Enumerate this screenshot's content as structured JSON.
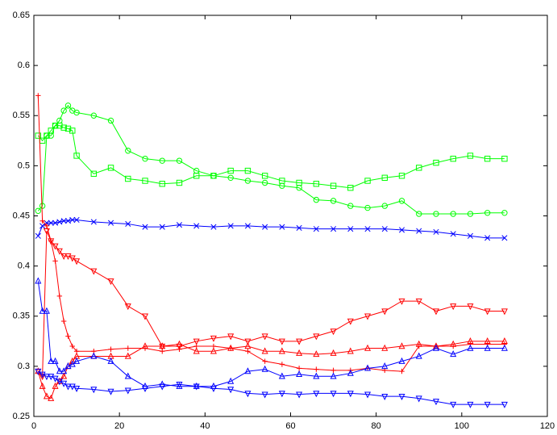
{
  "chart_data": {
    "type": "line",
    "x": [
      1,
      2,
      3,
      4,
      5,
      6,
      7,
      8,
      9,
      10,
      14,
      18,
      22,
      26,
      30,
      34,
      38,
      42,
      46,
      50,
      54,
      58,
      62,
      66,
      70,
      74,
      78,
      82,
      86,
      90,
      94,
      98,
      102,
      106,
      110
    ],
    "xlim": [
      0,
      120
    ],
    "xticks": [
      0,
      20,
      40,
      60,
      80,
      100,
      120
    ],
    "ylim": [
      0.25,
      0.65
    ],
    "yticks": [
      0.25,
      0.3,
      0.35,
      0.4,
      0.45,
      0.5,
      0.55,
      0.6,
      0.65
    ],
    "grid": false,
    "series": [
      {
        "color": "#00ff00",
        "marker": "square",
        "values": [
          0.53,
          0.525,
          0.53,
          0.535,
          0.54,
          0.54,
          0.538,
          0.537,
          0.535,
          0.51,
          0.492,
          0.498,
          0.487,
          0.485,
          0.482,
          0.483,
          0.49,
          0.49,
          0.495,
          0.495,
          0.49,
          0.485,
          0.483,
          0.482,
          0.48,
          0.478,
          0.485,
          0.488,
          0.49,
          0.498,
          0.503,
          0.507,
          0.51,
          0.507,
          0.507
        ]
      },
      {
        "color": "#00ff00",
        "marker": "circle",
        "values": [
          0.455,
          0.46,
          0.53,
          0.53,
          0.54,
          0.545,
          0.555,
          0.56,
          0.555,
          0.553,
          0.55,
          0.545,
          0.515,
          0.507,
          0.505,
          0.505,
          0.495,
          0.49,
          0.488,
          0.485,
          0.483,
          0.48,
          0.478,
          0.466,
          0.465,
          0.46,
          0.458,
          0.46,
          0.465,
          0.452,
          0.452,
          0.452,
          0.452,
          0.453,
          0.453
        ]
      },
      {
        "color": "#0000ff",
        "marker": "x",
        "values": [
          0.43,
          0.44,
          0.443,
          0.443,
          0.443,
          0.444,
          0.445,
          0.445,
          0.446,
          0.446,
          0.444,
          0.443,
          0.442,
          0.439,
          0.439,
          0.441,
          0.44,
          0.439,
          0.44,
          0.44,
          0.439,
          0.439,
          0.438,
          0.437,
          0.437,
          0.437,
          0.437,
          0.437,
          0.436,
          0.435,
          0.434,
          0.432,
          0.43,
          0.428,
          0.428
        ]
      },
      {
        "color": "#ff0000",
        "marker": "plus",
        "values": [
          0.57,
          0.445,
          0.44,
          0.425,
          0.405,
          0.37,
          0.345,
          0.33,
          0.32,
          0.315,
          0.315,
          0.317,
          0.318,
          0.318,
          0.315,
          0.317,
          0.32,
          0.32,
          0.318,
          0.315,
          0.305,
          0.302,
          0.298,
          0.297,
          0.296,
          0.296,
          0.298,
          0.296,
          0.295,
          0.32,
          0.32,
          0.32,
          0.322,
          0.322,
          0.322
        ]
      },
      {
        "color": "#ff0000",
        "marker": "triangle-down",
        "values": [
          0.295,
          0.29,
          0.435,
          0.425,
          0.42,
          0.415,
          0.41,
          0.41,
          0.408,
          0.405,
          0.395,
          0.385,
          0.36,
          0.35,
          0.32,
          0.32,
          0.325,
          0.328,
          0.33,
          0.325,
          0.33,
          0.325,
          0.325,
          0.33,
          0.335,
          0.345,
          0.35,
          0.355,
          0.365,
          0.365,
          0.355,
          0.36,
          0.36,
          0.355,
          0.355
        ]
      },
      {
        "color": "#ff0000",
        "marker": "triangle-up",
        "values": [
          0.295,
          0.28,
          0.27,
          0.268,
          0.28,
          0.285,
          0.29,
          0.3,
          0.305,
          0.31,
          0.31,
          0.31,
          0.31,
          0.32,
          0.32,
          0.322,
          0.315,
          0.315,
          0.318,
          0.32,
          0.315,
          0.315,
          0.313,
          0.312,
          0.313,
          0.315,
          0.318,
          0.318,
          0.32,
          0.322,
          0.32,
          0.322,
          0.325,
          0.325,
          0.325
        ]
      },
      {
        "color": "#0000ff",
        "marker": "triangle-up",
        "values": [
          0.385,
          0.355,
          0.355,
          0.305,
          0.305,
          0.295,
          0.295,
          0.3,
          0.302,
          0.305,
          0.31,
          0.305,
          0.29,
          0.28,
          0.282,
          0.28,
          0.28,
          0.28,
          0.285,
          0.295,
          0.297,
          0.29,
          0.292,
          0.29,
          0.29,
          0.293,
          0.298,
          0.3,
          0.305,
          0.31,
          0.318,
          0.312,
          0.318,
          0.318,
          0.318
        ]
      },
      {
        "color": "#0000ff",
        "marker": "triangle-down",
        "values": [
          0.295,
          0.292,
          0.29,
          0.29,
          0.288,
          0.285,
          0.283,
          0.28,
          0.28,
          0.278,
          0.277,
          0.275,
          0.276,
          0.278,
          0.28,
          0.282,
          0.28,
          0.278,
          0.277,
          0.273,
          0.272,
          0.273,
          0.272,
          0.273,
          0.273,
          0.273,
          0.272,
          0.27,
          0.27,
          0.268,
          0.265,
          0.262,
          0.262,
          0.262,
          0.262
        ]
      }
    ]
  }
}
